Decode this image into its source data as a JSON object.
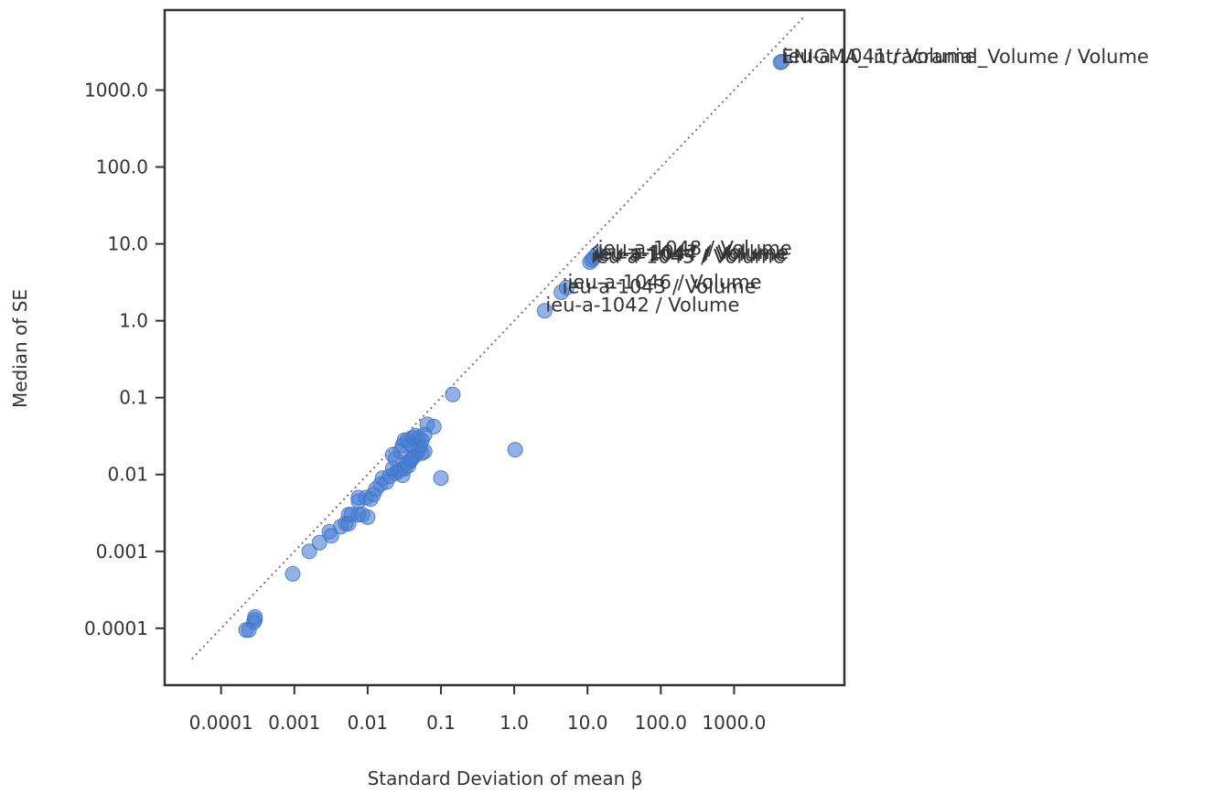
{
  "chart_data": {
    "type": "scatter",
    "title": "",
    "xlabel": "Standard Deviation of mean β",
    "ylabel": "Median of SE",
    "xscale": "log",
    "yscale": "log",
    "xlim": [
      1.7e-05,
      32000
    ],
    "ylim": [
      1.82e-05,
      11000
    ],
    "xticks": [
      0.0001,
      0.001,
      0.01,
      0.1,
      1,
      10,
      100,
      1000
    ],
    "xtick_labels": [
      "0.0001",
      "0.001",
      "0.01",
      "0.1",
      "1.0",
      "10.0",
      "100.0",
      "1000.0"
    ],
    "yticks": [
      0.0001,
      0.001,
      0.01,
      0.1,
      1,
      10,
      100,
      1000
    ],
    "ytick_labels": [
      "0.0001",
      "0.001",
      "0.01",
      "0.1",
      "1.0",
      "10.0",
      "100.0",
      "1000.0"
    ],
    "grid": false,
    "reference_line": {
      "style": "dotted",
      "color": "#777777",
      "x": [
        4e-05,
        9000
      ],
      "y": [
        4e-05,
        9000
      ]
    },
    "point_color": "#4a7fd4",
    "points": [
      {
        "x": 0.00022,
        "y": 9.5e-05
      },
      {
        "x": 0.00024,
        "y": 9.5e-05
      },
      {
        "x": 0.00028,
        "y": 0.00012
      },
      {
        "x": 0.00029,
        "y": 0.00013
      },
      {
        "x": 0.00029,
        "y": 0.00014
      },
      {
        "x": 0.00095,
        "y": 0.00051
      },
      {
        "x": 0.0016,
        "y": 0.001
      },
      {
        "x": 0.0022,
        "y": 0.0013
      },
      {
        "x": 0.003,
        "y": 0.0018
      },
      {
        "x": 0.0032,
        "y": 0.0016
      },
      {
        "x": 0.0043,
        "y": 0.0021
      },
      {
        "x": 0.005,
        "y": 0.0023
      },
      {
        "x": 0.0055,
        "y": 0.0023
      },
      {
        "x": 0.0055,
        "y": 0.003
      },
      {
        "x": 0.006,
        "y": 0.003
      },
      {
        "x": 0.0075,
        "y": 0.003
      },
      {
        "x": 0.0085,
        "y": 0.003
      },
      {
        "x": 0.01,
        "y": 0.0028
      },
      {
        "x": 0.0075,
        "y": 0.0045
      },
      {
        "x": 0.0075,
        "y": 0.005
      },
      {
        "x": 0.0095,
        "y": 0.005
      },
      {
        "x": 0.011,
        "y": 0.0048
      },
      {
        "x": 0.012,
        "y": 0.0055
      },
      {
        "x": 0.013,
        "y": 0.0065
      },
      {
        "x": 0.015,
        "y": 0.0075
      },
      {
        "x": 0.016,
        "y": 0.009
      },
      {
        "x": 0.018,
        "y": 0.008
      },
      {
        "x": 0.02,
        "y": 0.0095
      },
      {
        "x": 0.022,
        "y": 0.012
      },
      {
        "x": 0.024,
        "y": 0.0105
      },
      {
        "x": 0.026,
        "y": 0.011
      },
      {
        "x": 0.028,
        "y": 0.0115
      },
      {
        "x": 0.03,
        "y": 0.0098
      },
      {
        "x": 0.032,
        "y": 0.012
      },
      {
        "x": 0.034,
        "y": 0.014
      },
      {
        "x": 0.036,
        "y": 0.013
      },
      {
        "x": 0.038,
        "y": 0.015
      },
      {
        "x": 0.04,
        "y": 0.016
      },
      {
        "x": 0.042,
        "y": 0.017
      },
      {
        "x": 0.045,
        "y": 0.018
      },
      {
        "x": 0.048,
        "y": 0.02
      },
      {
        "x": 0.05,
        "y": 0.022
      },
      {
        "x": 0.055,
        "y": 0.019
      },
      {
        "x": 0.06,
        "y": 0.02
      },
      {
        "x": 0.052,
        "y": 0.024
      },
      {
        "x": 0.022,
        "y": 0.018
      },
      {
        "x": 0.024,
        "y": 0.016
      },
      {
        "x": 0.028,
        "y": 0.02
      },
      {
        "x": 0.03,
        "y": 0.024
      },
      {
        "x": 0.032,
        "y": 0.028
      },
      {
        "x": 0.035,
        "y": 0.028
      },
      {
        "x": 0.038,
        "y": 0.025
      },
      {
        "x": 0.042,
        "y": 0.03
      },
      {
        "x": 0.045,
        "y": 0.032
      },
      {
        "x": 0.05,
        "y": 0.03
      },
      {
        "x": 0.055,
        "y": 0.028
      },
      {
        "x": 0.06,
        "y": 0.033
      },
      {
        "x": 0.065,
        "y": 0.045
      },
      {
        "x": 0.08,
        "y": 0.042
      },
      {
        "x": 0.1,
        "y": 0.009
      },
      {
        "x": 0.145,
        "y": 0.11
      },
      {
        "x": 1.03,
        "y": 0.021
      },
      {
        "x": 2.6,
        "y": 1.35,
        "label": "ieu-a-1042 / Volume"
      },
      {
        "x": 4.4,
        "y": 2.35,
        "label": "ieu-a-1043 / Volume"
      },
      {
        "x": 5.2,
        "y": 2.7,
        "label": "ieu-a-1046 / Volume"
      },
      {
        "x": 10.8,
        "y": 5.8,
        "label": "ieu-a-1045 / Volume"
      },
      {
        "x": 11.5,
        "y": 6.2,
        "label": "ieu-a-1044 / Volume"
      },
      {
        "x": 12.2,
        "y": 6.6,
        "label": "ieu-a-1047 / Volume"
      },
      {
        "x": 13.5,
        "y": 7.4,
        "label": "ieu-a-1048 / Volume"
      },
      {
        "x": 4300,
        "y": 2300,
        "label": "ENIGMA_Intracranial_Volume / Volume"
      },
      {
        "x": 4500,
        "y": 2350,
        "label": "ieu-a-1041 / Volume"
      }
    ]
  }
}
